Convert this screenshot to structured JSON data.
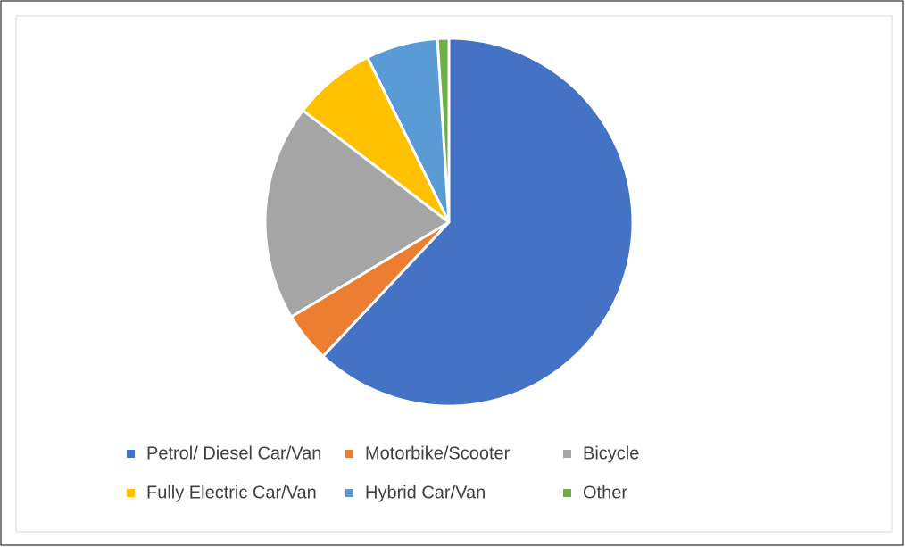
{
  "chart_data": {
    "type": "pie",
    "categories": [
      "Petrol/ Diesel Car/Van",
      "Motorbike/Scooter",
      "Bicycle",
      "Fully Electric Car/Van",
      "Hybrid Car/Van",
      "Other"
    ],
    "values": [
      62,
      4.4,
      19,
      7.3,
      6.3,
      1
    ],
    "colors": [
      "#4472c4",
      "#ed7d31",
      "#a5a5a5",
      "#ffc000",
      "#5b9bd5",
      "#70ad47"
    ],
    "legend": "bottom"
  }
}
